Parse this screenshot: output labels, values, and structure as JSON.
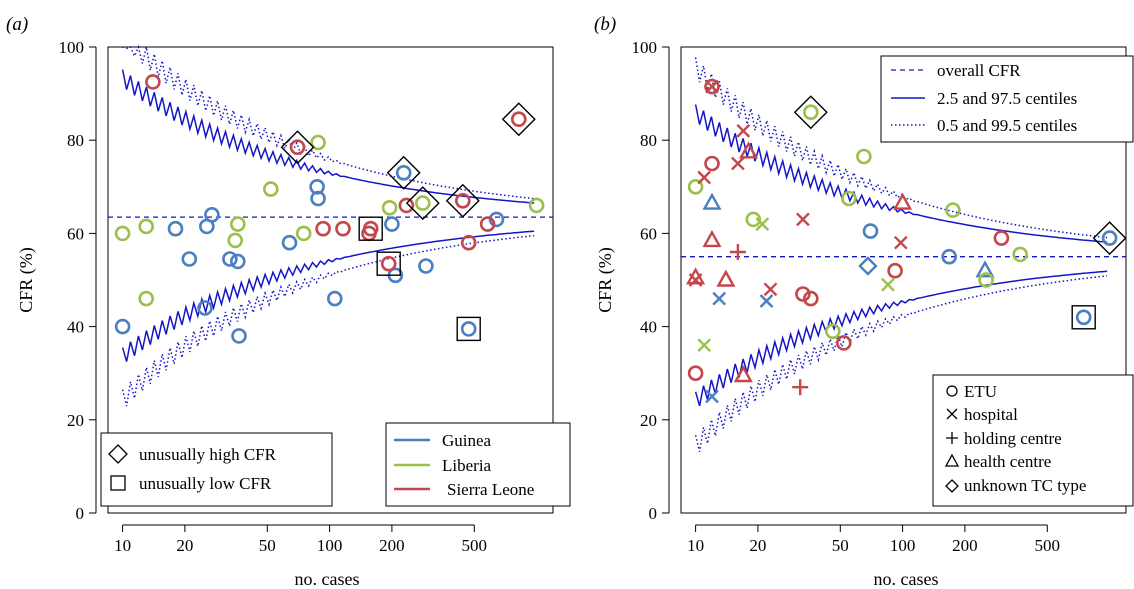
{
  "colors": {
    "Guinea": "#4A7FC1",
    "Liberia": "#9BBF4B",
    "Sierra Leone": "#C4474B",
    "lines": "#1515C8",
    "marks": "#000000"
  },
  "chart_data": [
    {
      "panel_label": "(a)",
      "type": "scatter",
      "x_scale": "log",
      "xlim": [
        8.5,
        1200
      ],
      "ylim": [
        0,
        100
      ],
      "xlabel": "no. cases",
      "ylabel": "CFR (%)",
      "x_ticks": [
        "10",
        "20",
        "50",
        "100",
        "200",
        "500"
      ],
      "y_ticks": [
        "0",
        "20",
        "40",
        "60",
        "80",
        "100"
      ],
      "overall_cfr": 63.5,
      "legend_marks": [
        "unusually high CFR",
        "unusually low CFR"
      ],
      "legend_countries": [
        "Guinea",
        "Liberia",
        "Sierra Leone"
      ],
      "points": [
        {
          "x": 10,
          "y": 40,
          "country": "Guinea"
        },
        {
          "x": 18,
          "y": 61,
          "country": "Guinea"
        },
        {
          "x": 21,
          "y": 54.5,
          "country": "Guinea"
        },
        {
          "x": 25,
          "y": 44,
          "country": "Guinea"
        },
        {
          "x": 25.5,
          "y": 61.5,
          "country": "Guinea"
        },
        {
          "x": 27,
          "y": 64,
          "country": "Guinea"
        },
        {
          "x": 33,
          "y": 54.5,
          "country": "Guinea"
        },
        {
          "x": 36,
          "y": 54,
          "country": "Guinea"
        },
        {
          "x": 36.5,
          "y": 38,
          "country": "Guinea"
        },
        {
          "x": 64,
          "y": 58,
          "country": "Guinea"
        },
        {
          "x": 87,
          "y": 70,
          "country": "Guinea"
        },
        {
          "x": 88,
          "y": 67.5,
          "country": "Guinea"
        },
        {
          "x": 106,
          "y": 46,
          "country": "Guinea"
        },
        {
          "x": 200,
          "y": 62,
          "country": "Guinea"
        },
        {
          "x": 208,
          "y": 51,
          "country": "Guinea"
        },
        {
          "x": 228,
          "y": 73,
          "country": "Guinea",
          "flag": "high"
        },
        {
          "x": 292,
          "y": 53,
          "country": "Guinea"
        },
        {
          "x": 470,
          "y": 39.5,
          "country": "Guinea",
          "flag": "low"
        },
        {
          "x": 640,
          "y": 63,
          "country": "Guinea"
        },
        {
          "x": 10,
          "y": 60,
          "country": "Liberia"
        },
        {
          "x": 13,
          "y": 46,
          "country": "Liberia"
        },
        {
          "x": 13,
          "y": 61.5,
          "country": "Liberia"
        },
        {
          "x": 35,
          "y": 58.5,
          "country": "Liberia"
        },
        {
          "x": 36,
          "y": 62,
          "country": "Liberia"
        },
        {
          "x": 52,
          "y": 69.5,
          "country": "Liberia"
        },
        {
          "x": 75,
          "y": 60,
          "country": "Liberia"
        },
        {
          "x": 88,
          "y": 79.5,
          "country": "Liberia"
        },
        {
          "x": 195,
          "y": 65.5,
          "country": "Liberia"
        },
        {
          "x": 282,
          "y": 66.5,
          "country": "Liberia",
          "flag": "high"
        },
        {
          "x": 1000,
          "y": 66,
          "country": "Liberia"
        },
        {
          "x": 14,
          "y": 92.5,
          "country": "Sierra Leone"
        },
        {
          "x": 70,
          "y": 78.5,
          "country": "Sierra Leone",
          "flag": "high"
        },
        {
          "x": 93,
          "y": 61,
          "country": "Sierra Leone"
        },
        {
          "x": 116,
          "y": 61,
          "country": "Sierra Leone"
        },
        {
          "x": 155,
          "y": 60,
          "country": "Sierra Leone"
        },
        {
          "x": 158,
          "y": 61,
          "country": "Sierra Leone",
          "flag": "low"
        },
        {
          "x": 193,
          "y": 53.5,
          "country": "Sierra Leone",
          "flag": "low"
        },
        {
          "x": 235,
          "y": 66,
          "country": "Sierra Leone"
        },
        {
          "x": 440,
          "y": 67,
          "country": "Sierra Leone",
          "flag": "high"
        },
        {
          "x": 470,
          "y": 58,
          "country": "Sierra Leone"
        },
        {
          "x": 580,
          "y": 62,
          "country": "Sierra Leone"
        },
        {
          "x": 820,
          "y": 84.5,
          "country": "Sierra Leone",
          "flag": "high"
        }
      ]
    },
    {
      "panel_label": "(b)",
      "type": "scatter",
      "x_scale": "log",
      "xlim": [
        8.5,
        1200
      ],
      "ylim": [
        0,
        100
      ],
      "xlabel": "no. cases",
      "ylabel": "CFR (%)",
      "x_ticks": [
        "10",
        "20",
        "50",
        "100",
        "200",
        "500"
      ],
      "y_ticks": [
        "0",
        "20",
        "40",
        "60",
        "80",
        "100"
      ],
      "overall_cfr": 55,
      "legend_lines": [
        "overall CFR",
        "2.5 and 97.5 centiles",
        "0.5 and 99.5 centiles"
      ],
      "legend_types": [
        "ETU",
        "hospital",
        "holding centre",
        "health centre",
        "unknown TC type"
      ],
      "points": [
        {
          "x": 12,
          "y": 25,
          "country": "Guinea",
          "type": "hospital"
        },
        {
          "x": 12,
          "y": 66.5,
          "country": "Guinea",
          "type": "health centre"
        },
        {
          "x": 13,
          "y": 46,
          "country": "Guinea",
          "type": "hospital"
        },
        {
          "x": 22,
          "y": 45.5,
          "country": "Guinea",
          "type": "hospital"
        },
        {
          "x": 68,
          "y": 53,
          "country": "Guinea",
          "type": "unknown TC type"
        },
        {
          "x": 70,
          "y": 60.5,
          "country": "Guinea",
          "type": "ETU"
        },
        {
          "x": 168,
          "y": 55,
          "country": "Guinea",
          "type": "ETU"
        },
        {
          "x": 250,
          "y": 52,
          "country": "Guinea",
          "type": "health centre"
        },
        {
          "x": 750,
          "y": 42,
          "country": "Guinea",
          "type": "ETU",
          "flag": "low"
        },
        {
          "x": 1000,
          "y": 59,
          "country": "Guinea",
          "type": "ETU",
          "flag": "high"
        },
        {
          "x": 10,
          "y": 70,
          "country": "Liberia",
          "type": "ETU"
        },
        {
          "x": 11,
          "y": 36,
          "country": "Liberia",
          "type": "hospital"
        },
        {
          "x": 19,
          "y": 63,
          "country": "Liberia",
          "type": "ETU"
        },
        {
          "x": 21,
          "y": 62,
          "country": "Liberia",
          "type": "hospital"
        },
        {
          "x": 36,
          "y": 86,
          "country": "Liberia",
          "type": "ETU",
          "flag": "high"
        },
        {
          "x": 46,
          "y": 39,
          "country": "Liberia",
          "type": "ETU"
        },
        {
          "x": 55,
          "y": 67.5,
          "country": "Liberia",
          "type": "ETU"
        },
        {
          "x": 65,
          "y": 76.5,
          "country": "Liberia",
          "type": "ETU"
        },
        {
          "x": 85,
          "y": 49,
          "country": "Liberia",
          "type": "hospital"
        },
        {
          "x": 175,
          "y": 65,
          "country": "Liberia",
          "type": "ETU"
        },
        {
          "x": 253,
          "y": 50,
          "country": "Liberia",
          "type": "ETU"
        },
        {
          "x": 370,
          "y": 55.5,
          "country": "Liberia",
          "type": "ETU"
        },
        {
          "x": 10,
          "y": 30,
          "country": "Sierra Leone",
          "type": "ETU"
        },
        {
          "x": 10,
          "y": 50.5,
          "country": "Sierra Leone",
          "type": "health centre"
        },
        {
          "x": 10,
          "y": 50,
          "country": "Sierra Leone",
          "type": "hospital"
        },
        {
          "x": 11,
          "y": 72,
          "country": "Sierra Leone",
          "type": "hospital"
        },
        {
          "x": 12,
          "y": 91.5,
          "country": "Sierra Leone",
          "type": "ETU"
        },
        {
          "x": 12,
          "y": 91.5,
          "country": "Sierra Leone",
          "type": "hospital"
        },
        {
          "x": 12,
          "y": 58.5,
          "country": "Sierra Leone",
          "type": "health centre"
        },
        {
          "x": 12,
          "y": 75,
          "country": "Sierra Leone",
          "type": "ETU"
        },
        {
          "x": 14,
          "y": 50,
          "country": "Sierra Leone",
          "type": "health centre"
        },
        {
          "x": 16,
          "y": 56,
          "country": "Sierra Leone",
          "type": "holding centre"
        },
        {
          "x": 16,
          "y": 75,
          "country": "Sierra Leone",
          "type": "hospital"
        },
        {
          "x": 17,
          "y": 82,
          "country": "Sierra Leone",
          "type": "hospital"
        },
        {
          "x": 17,
          "y": 29.5,
          "country": "Sierra Leone",
          "type": "health centre"
        },
        {
          "x": 18,
          "y": 77.5,
          "country": "Sierra Leone",
          "type": "health centre"
        },
        {
          "x": 23,
          "y": 48,
          "country": "Sierra Leone",
          "type": "hospital"
        },
        {
          "x": 32,
          "y": 27,
          "country": "Sierra Leone",
          "type": "holding centre"
        },
        {
          "x": 33,
          "y": 63,
          "country": "Sierra Leone",
          "type": "hospital"
        },
        {
          "x": 33,
          "y": 47,
          "country": "Sierra Leone",
          "type": "ETU"
        },
        {
          "x": 36,
          "y": 46,
          "country": "Sierra Leone",
          "type": "ETU"
        },
        {
          "x": 52,
          "y": 36.5,
          "country": "Sierra Leone",
          "type": "ETU"
        },
        {
          "x": 92,
          "y": 52,
          "country": "Sierra Leone",
          "type": "ETU"
        },
        {
          "x": 98,
          "y": 58,
          "country": "Sierra Leone",
          "type": "hospital"
        },
        {
          "x": 100,
          "y": 66.5,
          "country": "Sierra Leone",
          "type": "health centre"
        },
        {
          "x": 300,
          "y": 59,
          "country": "Sierra Leone",
          "type": "ETU"
        }
      ]
    }
  ]
}
